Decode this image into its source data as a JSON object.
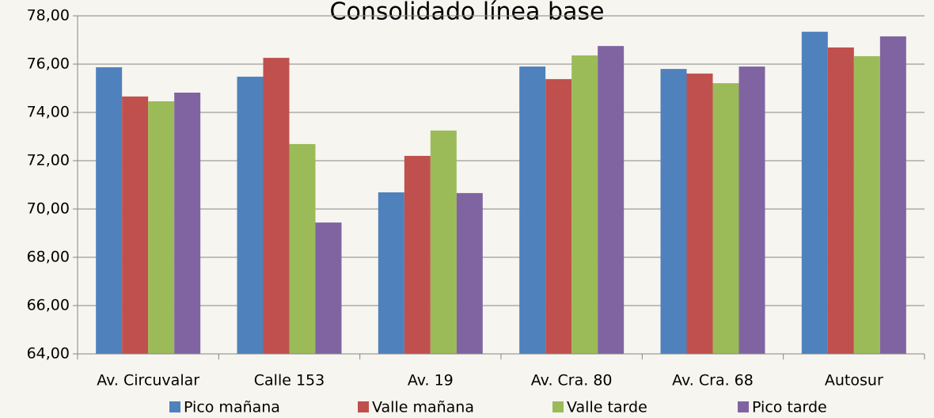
{
  "chart_data": {
    "type": "bar",
    "title": "Consolidado línea base",
    "categories": [
      "Av. Circuvalar",
      "Calle 153",
      "Av. 19",
      "Av. Cra. 80",
      "Av. Cra. 68",
      "Autosur"
    ],
    "series": [
      {
        "name": "Pico mañana",
        "color": "#4f81bd",
        "values": [
          75.87,
          75.48,
          70.69,
          75.9,
          75.8,
          77.34
        ]
      },
      {
        "name": "Valle mañana",
        "color": "#c0504d",
        "values": [
          74.66,
          76.26,
          72.2,
          75.38,
          75.61,
          76.69
        ]
      },
      {
        "name": "Valle tarde",
        "color": "#9bbb59",
        "values": [
          74.46,
          72.69,
          73.25,
          76.36,
          75.21,
          76.33
        ]
      },
      {
        "name": "Pico tarde",
        "color": "#8064a2",
        "values": [
          74.82,
          69.44,
          70.66,
          76.75,
          75.9,
          77.15
        ]
      }
    ],
    "ylim": [
      64,
      78
    ],
    "yticks": [
      {
        "value": 64,
        "label": "64,00"
      },
      {
        "value": 66,
        "label": "66,00"
      },
      {
        "value": 68,
        "label": "68,00"
      },
      {
        "value": 70,
        "label": "70,00"
      },
      {
        "value": 72,
        "label": "72,00"
      },
      {
        "value": 74,
        "label": "74,00"
      },
      {
        "value": 76,
        "label": "76,00"
      },
      {
        "value": 78,
        "label": "78,00"
      }
    ],
    "grid": true,
    "legend": "bottom"
  }
}
